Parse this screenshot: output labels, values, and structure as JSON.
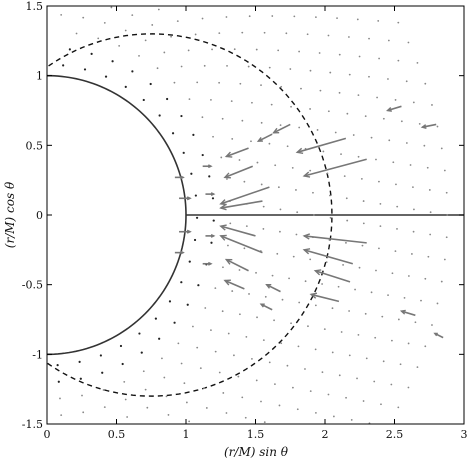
{
  "chart_data": {
    "type": "vector-field",
    "title": "",
    "xlabel": "(r/M) sin θ",
    "ylabel": "(r/M) cos θ",
    "xlim": [
      0,
      3
    ],
    "ylim": [
      -1.5,
      1.5
    ],
    "xticks": [
      0,
      0.5,
      1,
      1.5,
      2,
      2.5,
      3
    ],
    "xtick_labels": [
      "0",
      "0.5",
      "1",
      "1.5",
      "2",
      "2.5",
      "3"
    ],
    "yticks": [
      1.5,
      1,
      0.5,
      0,
      -0.5,
      -1,
      -1.5
    ],
    "ytick_labels": [
      "1.5",
      "1",
      "0.5",
      "0",
      "-0.5",
      "-1",
      "-1.5"
    ],
    "grid": false,
    "curves": [
      {
        "name": "",
        "style": "solid",
        "kind": "circle",
        "center": [
          0,
          0
        ],
        "radius": 1,
        "theta_deg": [
          -90,
          90
        ]
      },
      {
        "name": "",
        "style": "dashed",
        "kind": "circle",
        "center": [
          0.75,
          0
        ],
        "radius": 1.3,
        "theta_deg": [
          -125,
          125
        ]
      },
      {
        "name": "",
        "style": "solid",
        "kind": "segment",
        "from": [
          1,
          0
        ],
        "to": [
          3,
          0
        ]
      }
    ],
    "arrows": [
      {
        "x": 0.92,
        "y": 0.27,
        "u": 0.06,
        "v": 0.0
      },
      {
        "x": 0.95,
        "y": 0.12,
        "u": 0.08,
        "v": 0.0
      },
      {
        "x": 0.95,
        "y": -0.12,
        "u": 0.08,
        "v": 0.0
      },
      {
        "x": 0.92,
        "y": -0.27,
        "u": 0.06,
        "v": 0.0
      },
      {
        "x": 1.12,
        "y": 0.35,
        "u": 0.06,
        "v": 0.0
      },
      {
        "x": 1.14,
        "y": 0.15,
        "u": 0.06,
        "v": 0.0
      },
      {
        "x": 1.14,
        "y": -0.15,
        "u": 0.06,
        "v": 0.0
      },
      {
        "x": 1.12,
        "y": -0.35,
        "u": 0.06,
        "v": 0.0
      },
      {
        "x": 1.55,
        "y": 0.1,
        "u": -0.3,
        "v": -0.05
      },
      {
        "x": 1.6,
        "y": 0.2,
        "u": -0.35,
        "v": -0.12
      },
      {
        "x": 1.5,
        "y": -0.15,
        "u": -0.25,
        "v": 0.07
      },
      {
        "x": 1.55,
        "y": -0.27,
        "u": -0.3,
        "v": 0.12
      },
      {
        "x": 1.48,
        "y": 0.35,
        "u": -0.2,
        "v": -0.08
      },
      {
        "x": 1.45,
        "y": 0.48,
        "u": -0.16,
        "v": -0.06
      },
      {
        "x": 1.45,
        "y": -0.4,
        "u": -0.16,
        "v": 0.08
      },
      {
        "x": 1.42,
        "y": -0.53,
        "u": -0.14,
        "v": 0.06
      },
      {
        "x": 1.75,
        "y": 0.65,
        "u": -0.12,
        "v": -0.06
      },
      {
        "x": 1.62,
        "y": 0.58,
        "u": -0.1,
        "v": -0.05
      },
      {
        "x": 1.68,
        "y": -0.55,
        "u": -0.1,
        "v": 0.05
      },
      {
        "x": 1.62,
        "y": -0.68,
        "u": -0.08,
        "v": 0.04
      },
      {
        "x": 2.3,
        "y": 0.4,
        "u": -0.45,
        "v": -0.12
      },
      {
        "x": 2.15,
        "y": 0.55,
        "u": -0.35,
        "v": -0.1
      },
      {
        "x": 2.3,
        "y": -0.2,
        "u": -0.45,
        "v": 0.05
      },
      {
        "x": 2.2,
        "y": -0.35,
        "u": -0.35,
        "v": 0.1
      },
      {
        "x": 2.18,
        "y": -0.48,
        "u": -0.25,
        "v": 0.08
      },
      {
        "x": 2.1,
        "y": -0.62,
        "u": -0.2,
        "v": 0.05
      },
      {
        "x": 2.55,
        "y": 0.78,
        "u": -0.1,
        "v": -0.03
      },
      {
        "x": 2.65,
        "y": -0.72,
        "u": -0.1,
        "v": 0.03
      },
      {
        "x": 2.8,
        "y": 0.65,
        "u": -0.1,
        "v": -0.02
      },
      {
        "x": 2.85,
        "y": -0.88,
        "u": -0.06,
        "v": 0.03
      }
    ]
  }
}
